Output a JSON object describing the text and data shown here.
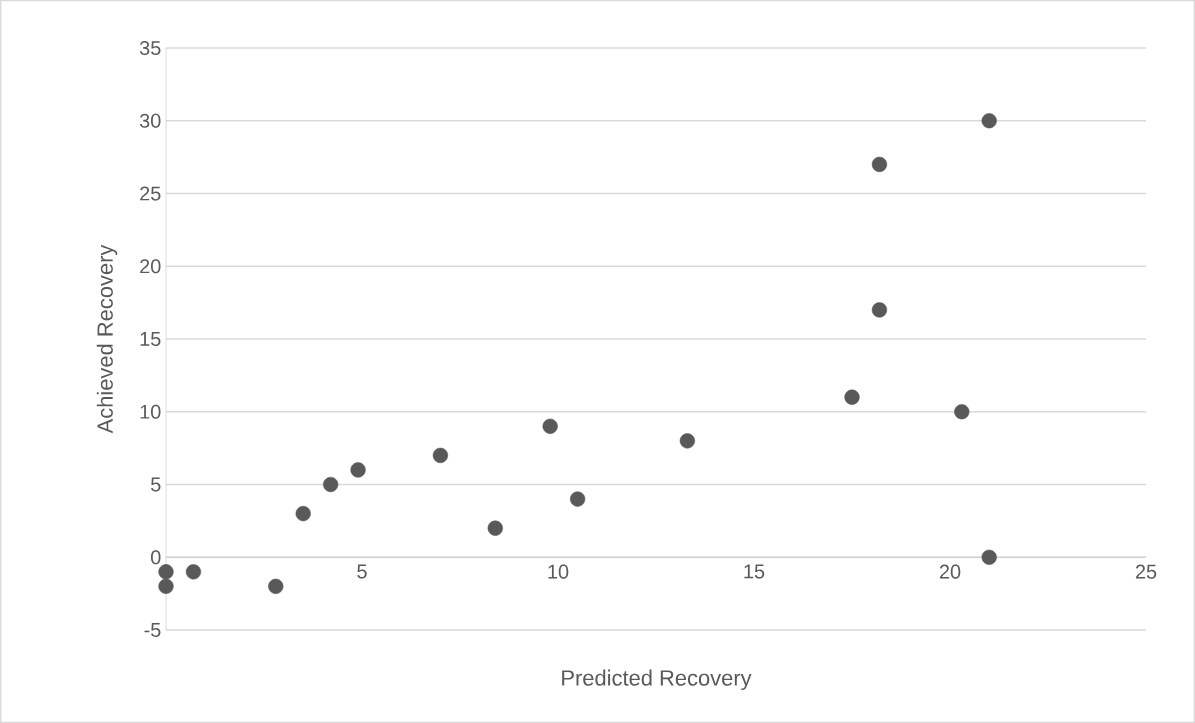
{
  "chart_data": {
    "type": "scatter",
    "xlabel": "Predicted Recovery",
    "ylabel": "Achieved Recovery",
    "x": [
      0,
      0,
      0.7,
      2.8,
      3.5,
      4.2,
      4.9,
      7.0,
      8.4,
      9.8,
      10.5,
      13.3,
      17.5,
      18.2,
      18.2,
      20.3,
      21.0,
      21.0
    ],
    "values": [
      -1,
      -2,
      -1,
      -2,
      3,
      5,
      6,
      7,
      2,
      9,
      4,
      8,
      11,
      27,
      17,
      10,
      30,
      0
    ],
    "color": "#595959",
    "marker": "circle",
    "xlim": [
      0,
      25
    ],
    "xticks": [
      0,
      5,
      10,
      15,
      20,
      25
    ],
    "ylim": [
      -5,
      35
    ],
    "yticks": [
      -5,
      0,
      5,
      10,
      15,
      20,
      25,
      30,
      35
    ],
    "grid": "y"
  }
}
